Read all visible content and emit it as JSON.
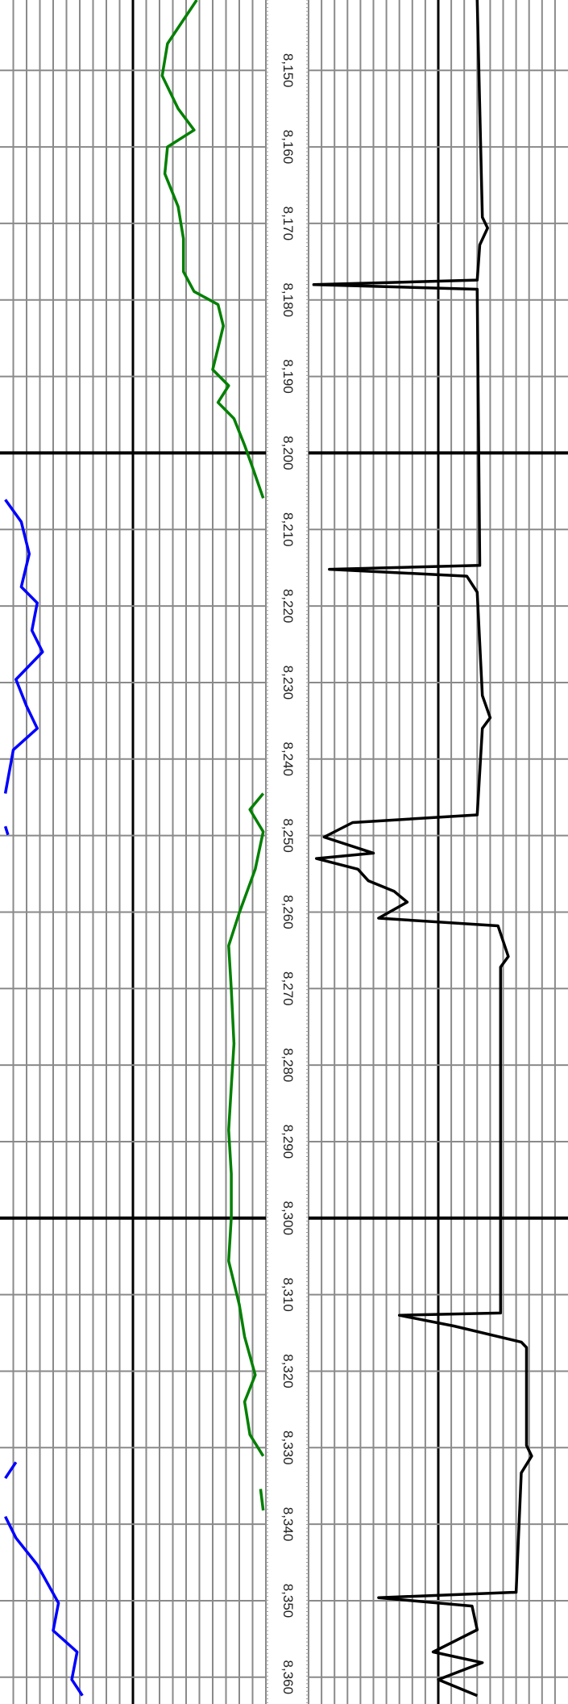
{
  "chart_data": {
    "type": "well-log",
    "ylim": [
      8140.8,
      8363.5
    ],
    "yticks": [
      {
        "value": 8150,
        "label": "8,150"
      },
      {
        "value": 8160,
        "label": "8,160"
      },
      {
        "value": 8170,
        "label": "8,170"
      },
      {
        "value": 8180,
        "label": "8,180"
      },
      {
        "value": 8190,
        "label": "8,190"
      },
      {
        "value": 8200,
        "label": "8,200"
      },
      {
        "value": 8210,
        "label": "8,210"
      },
      {
        "value": 8220,
        "label": "8,220"
      },
      {
        "value": 8230,
        "label": "8,230"
      },
      {
        "value": 8240,
        "label": "8,240"
      },
      {
        "value": 8250,
        "label": "8,250"
      },
      {
        "value": 8260,
        "label": "8,260"
      },
      {
        "value": 8270,
        "label": "8,270"
      },
      {
        "value": 8280,
        "label": "8,280"
      },
      {
        "value": 8290,
        "label": "8,290"
      },
      {
        "value": 8300,
        "label": "8,300"
      },
      {
        "value": 8310,
        "label": "8,310"
      },
      {
        "value": 8320,
        "label": "8,320"
      },
      {
        "value": 8330,
        "label": "8,330"
      },
      {
        "value": 8340,
        "label": "8,340"
      },
      {
        "value": 8350,
        "label": "8,350"
      },
      {
        "value": 8360,
        "label": "8,360"
      }
    ],
    "major_yticks": [
      8200,
      8300
    ],
    "xlim": [
      0,
      100
    ],
    "grid": true,
    "series": [
      {
        "color": "#008000",
        "track": "left",
        "depth": [
          8140.8,
          8146.5,
          8150.7,
          8155,
          8157.8,
          8160,
          8163.5,
          8167.8,
          8172,
          8176.3,
          8178.9,
          8180.6,
          8183.4,
          8186.3,
          8189.1,
          8191.2,
          8193.4,
          8195.5,
          8199,
          8201.9,
          8205.9,
          null,
          8244.5,
          8246.6,
          8249.5,
          8254.4,
          8260.1,
          8264.4,
          8270.1,
          8277.2,
          8282.8,
          8288.5,
          8294.2,
          8299.9,
          8305.6,
          8311.3,
          8315.5,
          8320.5,
          8324,
          8328.3,
          8331.1,
          null,
          8335.4,
          8338.2
        ],
        "values": [
          74,
          63,
          61,
          67,
          73,
          63,
          62,
          67,
          69,
          69,
          73,
          82,
          84,
          82,
          80,
          86,
          82,
          88,
          92,
          95,
          99,
          null,
          99,
          94,
          99,
          96,
          90,
          86,
          87,
          88,
          87,
          86,
          87,
          87,
          86,
          90,
          92,
          96,
          92,
          94,
          99,
          null,
          98,
          99
        ]
      },
      {
        "color": "#0000ff",
        "track": "left",
        "depth": [
          8206.1,
          8209,
          8213.2,
          8217.5,
          8219.6,
          8223.2,
          8226,
          8229.6,
          8233.1,
          8236,
          8238.8,
          8244.5,
          null,
          8248.8,
          8249.9,
          null,
          8331.9,
          8334,
          null,
          8339,
          8341.8,
          8345.3,
          8350.3,
          8353.9,
          8356.7,
          8360.3,
          8362.4
        ],
        "values": [
          2,
          8,
          11,
          8,
          14,
          12,
          16,
          6,
          10,
          14,
          5,
          2,
          null,
          2,
          3,
          null,
          6,
          2,
          null,
          2,
          6,
          14,
          22,
          20,
          29,
          27,
          31
        ]
      },
      {
        "color": "#000000",
        "track": "right",
        "depth": [
          8140.8,
          8169.2,
          8170.6,
          8172.8,
          8177.4,
          8178,
          8178.6,
          8214.7,
          8215.2,
          8216.1,
          8218.2,
          8231.7,
          8234.6,
          8236,
          8247.3,
          8248.3,
          8250.2,
          8252.3,
          8253,
          8254.4,
          8255.9,
          8257.3,
          8258.7,
          8260.8,
          8261.8,
          8265.8,
          8267.2,
          8297.1,
          8312.4,
          8312.7,
          8314.1,
          8316.2,
          8316.9,
          8329.7,
          8331.1,
          8333.3,
          8348.9,
          8349.6,
          8350.7,
          8353.8,
          8356.7,
          8358.1,
          8360.3,
          8362.4
        ],
        "values": [
          65,
          67,
          69,
          66,
          65,
          2,
          65,
          66,
          8,
          61,
          65,
          67,
          70,
          67,
          65,
          17,
          6,
          25,
          3,
          19,
          23,
          33,
          38,
          27,
          73,
          77,
          74,
          74,
          74,
          35,
          56,
          82,
          84,
          84,
          86,
          82,
          80,
          27,
          63,
          65,
          48,
          67,
          50,
          65
        ]
      }
    ]
  }
}
